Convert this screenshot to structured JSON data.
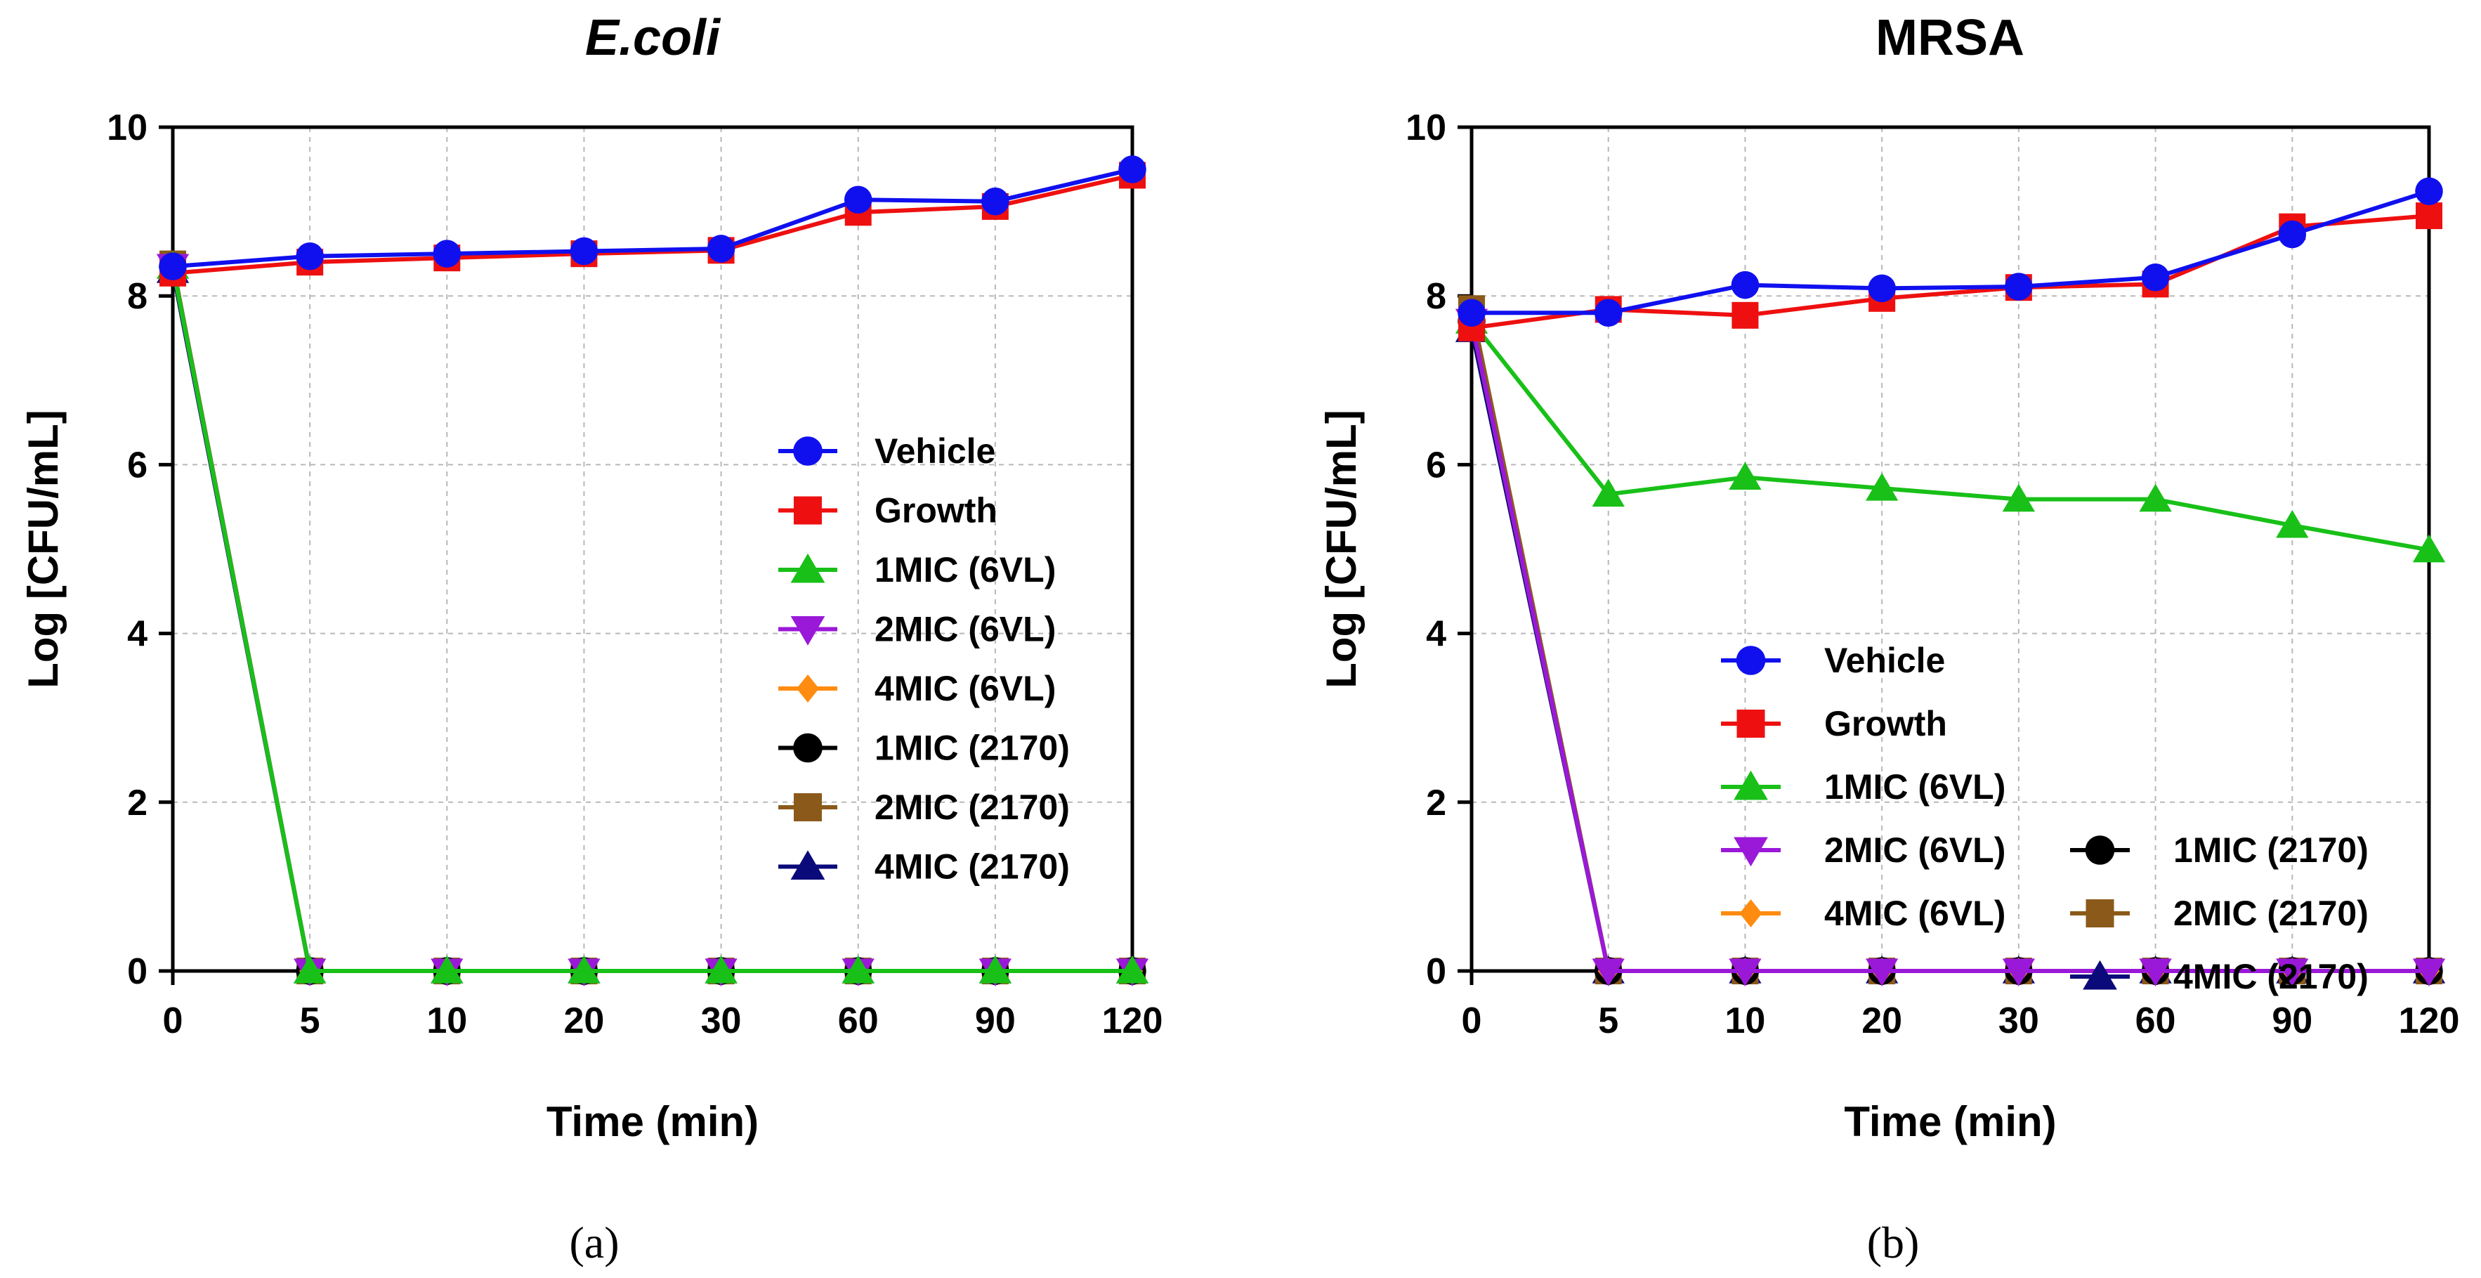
{
  "chart_data": [
    {
      "type": "line",
      "title": "E.coli",
      "title_italic": true,
      "panel_label": "(a)",
      "xlabel": "Time (min)",
      "ylabel": "Log [CFU/mL]",
      "categories": [
        "0",
        "5",
        "10",
        "20",
        "30",
        "60",
        "90",
        "120"
      ],
      "ylim": [
        0,
        10
      ],
      "yticks": [
        "0",
        "2",
        "4",
        "6",
        "8",
        "10"
      ],
      "grid": true,
      "legend_position": "right",
      "legend_columns": 1,
      "series": [
        {
          "name": "Vehicle",
          "color": "#1010ee",
          "marker": "circle",
          "values": [
            8.35,
            8.47,
            8.5,
            8.53,
            8.56,
            9.14,
            9.12,
            9.5
          ]
        },
        {
          "name": "Growth",
          "color": "#ee1010",
          "marker": "square",
          "values": [
            8.27,
            8.4,
            8.45,
            8.5,
            8.54,
            8.99,
            9.06,
            9.43
          ]
        },
        {
          "name": "1MIC (6VL)",
          "color": "#18c018",
          "marker": "triangle-up",
          "values": [
            8.35,
            0,
            0,
            0,
            0,
            0,
            0,
            0
          ]
        },
        {
          "name": "2MIC (6VL)",
          "color": "#9a18d8",
          "marker": "triangle-down",
          "values": [
            8.35,
            0,
            0,
            0,
            0,
            0,
            0,
            0
          ]
        },
        {
          "name": "4MIC (6VL)",
          "color": "#ff8c10",
          "marker": "diamond",
          "values": [
            8.35,
            0,
            0,
            0,
            0,
            0,
            0,
            0
          ]
        },
        {
          "name": "1MIC (2170)",
          "color": "#000000",
          "marker": "circle",
          "values": [
            8.35,
            0,
            0,
            0,
            0,
            0,
            0,
            0
          ]
        },
        {
          "name": "2MIC (2170)",
          "color": "#8b5a1a",
          "marker": "square",
          "values": [
            8.38,
            0,
            0,
            0,
            0,
            0,
            0,
            0
          ]
        },
        {
          "name": "4MIC (2170)",
          "color": "#0a0a7a",
          "marker": "triangle-up",
          "values": [
            8.3,
            0,
            0,
            0,
            0,
            0,
            0,
            0
          ]
        }
      ],
      "draw_order": [
        7,
        6,
        5,
        4,
        3,
        2,
        1,
        0
      ]
    },
    {
      "type": "line",
      "title": "MRSA",
      "title_italic": false,
      "panel_label": "(b)",
      "xlabel": "Time (min)",
      "ylabel": "Log [CFU/mL]",
      "categories": [
        "0",
        "5",
        "10",
        "20",
        "30",
        "60",
        "90",
        "120"
      ],
      "ylim": [
        0,
        10
      ],
      "yticks": [
        "0",
        "2",
        "4",
        "6",
        "8",
        "10"
      ],
      "grid": true,
      "legend_position": "bottom-center",
      "legend_columns": 2,
      "series": [
        {
          "name": "Vehicle",
          "color": "#1010ee",
          "marker": "circle",
          "values": [
            7.8,
            7.8,
            8.13,
            8.09,
            8.11,
            8.22,
            8.73,
            9.24
          ]
        },
        {
          "name": "Growth",
          "color": "#ee1010",
          "marker": "square",
          "values": [
            7.62,
            7.84,
            7.77,
            7.97,
            8.1,
            8.14,
            8.82,
            8.95
          ]
        },
        {
          "name": "1MIC (6VL)",
          "color": "#18c018",
          "marker": "triangle-up",
          "values": [
            7.7,
            5.65,
            5.85,
            5.72,
            5.59,
            5.59,
            5.28,
            4.99
          ]
        },
        {
          "name": "2MIC (6VL)",
          "color": "#9a18d8",
          "marker": "triangle-down",
          "values": [
            7.7,
            0,
            0,
            0,
            0,
            0,
            0,
            0
          ]
        },
        {
          "name": "4MIC (6VL)",
          "color": "#ff8c10",
          "marker": "diamond",
          "values": [
            7.7,
            0,
            0,
            0,
            0,
            0,
            0,
            0
          ]
        },
        {
          "name": "1MIC (2170)",
          "color": "#000000",
          "marker": "circle",
          "values": [
            7.7,
            0,
            0,
            0,
            0,
            0,
            0,
            0
          ]
        },
        {
          "name": "2MIC (2170)",
          "color": "#8b5a1a",
          "marker": "square",
          "values": [
            7.85,
            0,
            0,
            0,
            0,
            0,
            0,
            0
          ]
        },
        {
          "name": "4MIC (2170)",
          "color": "#0a0a7a",
          "marker": "triangle-up",
          "values": [
            7.6,
            0,
            0,
            0,
            0,
            0,
            0,
            0
          ]
        }
      ],
      "draw_order": [
        7,
        6,
        5,
        4,
        2,
        3,
        1,
        0
      ]
    }
  ]
}
